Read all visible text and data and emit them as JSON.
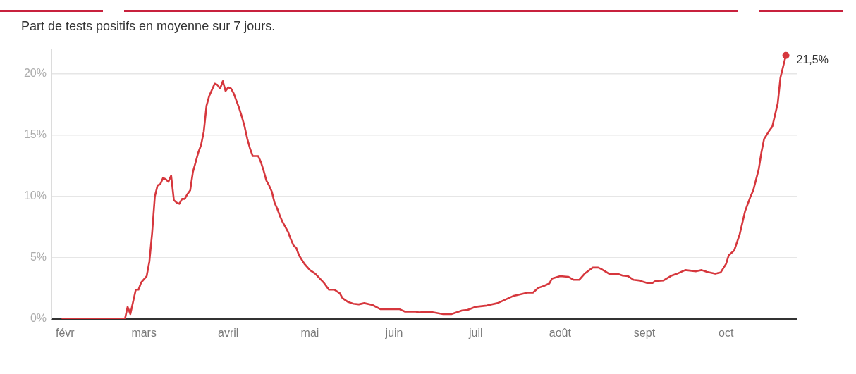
{
  "chart_data": {
    "type": "line",
    "title": "Part de tests positifs en moyenne sur 7 jours.",
    "color": "#d6373d",
    "x": [
      "--01-31",
      "--02-23",
      "--02-24",
      "--02-25",
      "--02-27",
      "--02-28",
      "--02-29",
      "--03-02",
      "--03-03",
      "--03-04",
      "--03-05",
      "--03-06",
      "--03-07",
      "--03-08",
      "--03-09",
      "--03-10",
      "--03-11",
      "--03-12",
      "--03-13",
      "--03-14",
      "--03-15",
      "--03-16",
      "--03-17",
      "--03-18",
      "--03-19",
      "--03-21",
      "--03-22",
      "--03-23",
      "--03-24",
      "--03-25",
      "--03-26",
      "--03-27",
      "--03-28",
      "--03-29",
      "--03-30",
      "--03-31",
      "--04-01",
      "--04-02",
      "--04-03",
      "--04-04",
      "--04-05",
      "--04-06",
      "--04-07",
      "--04-08",
      "--04-09",
      "--04-10",
      "--04-12",
      "--04-13",
      "--04-14",
      "--04-15",
      "--04-16",
      "--04-17",
      "--04-18",
      "--04-19",
      "--04-20",
      "--04-21",
      "--04-23",
      "--04-24",
      "--04-25",
      "--04-26",
      "--04-27",
      "--04-29",
      "--05-01",
      "--05-03",
      "--05-06",
      "--05-08",
      "--05-10",
      "--05-12",
      "--05-13",
      "--05-15",
      "--05-17",
      "--05-19",
      "--05-21",
      "--05-24",
      "--05-27",
      "--05-30",
      "--06-03",
      "--06-05",
      "--06-09",
      "--06-10",
      "--06-14",
      "--06-19",
      "--06-22",
      "--06-26",
      "--06-28",
      "--07-01",
      "--07-05",
      "--07-09",
      "--07-12",
      "--07-15",
      "--07-17",
      "--07-20",
      "--07-22",
      "--07-24",
      "--07-26",
      "--07-28",
      "--07-29",
      "--08-01",
      "--08-04",
      "--08-06",
      "--08-08",
      "--08-10",
      "--08-13",
      "--08-15",
      "--08-16",
      "--08-19",
      "--08-22",
      "--08-24",
      "--08-26",
      "--08-28",
      "--08-30",
      "--09-02",
      "--09-04",
      "--09-05",
      "--09-08",
      "--09-11",
      "--09-13",
      "--09-16",
      "--09-20",
      "--09-22",
      "--09-24",
      "--09-27",
      "--09-29",
      "--10-01",
      "--10-02",
      "--10-04",
      "--10-06",
      "--10-08",
      "--10-10",
      "--10-11",
      "--10-13",
      "--10-14",
      "--10-15",
      "--10-17",
      "--10-18",
      "--10-20",
      "--10-21",
      "--10-23"
    ],
    "values": [
      0,
      0,
      1.0,
      0.4,
      2.4,
      2.4,
      3.0,
      3.5,
      4.7,
      7.0,
      10.0,
      10.9,
      11.0,
      11.5,
      11.4,
      11.2,
      11.7,
      9.7,
      9.5,
      9.4,
      9.8,
      9.8,
      10.2,
      10.5,
      12.0,
      13.6,
      14.2,
      15.3,
      17.4,
      18.2,
      18.7,
      19.2,
      19.1,
      18.8,
      19.4,
      18.6,
      18.9,
      18.8,
      18.4,
      17.8,
      17.2,
      16.5,
      15.7,
      14.7,
      13.9,
      13.3,
      13.3,
      12.8,
      12.1,
      11.3,
      10.9,
      10.4,
      9.5,
      9.0,
      8.4,
      7.9,
      7.1,
      6.5,
      6.0,
      5.8,
      5.2,
      4.5,
      4.0,
      3.7,
      3.0,
      2.4,
      2.4,
      2.1,
      1.7,
      1.4,
      1.25,
      1.2,
      1.3,
      1.15,
      0.8,
      0.8,
      0.8,
      0.6,
      0.6,
      0.55,
      0.6,
      0.4,
      0.4,
      0.7,
      0.75,
      1.0,
      1.1,
      1.3,
      1.6,
      1.9,
      2.0,
      2.15,
      2.15,
      2.55,
      2.7,
      2.9,
      3.3,
      3.5,
      3.45,
      3.2,
      3.2,
      3.7,
      4.2,
      4.2,
      4.1,
      3.7,
      3.7,
      3.55,
      3.5,
      3.2,
      3.15,
      2.95,
      2.95,
      3.1,
      3.15,
      3.55,
      3.7,
      4.0,
      3.9,
      4.0,
      3.85,
      3.7,
      3.8,
      4.5,
      5.2,
      5.6,
      6.9,
      8.8,
      10.0,
      10.5,
      12.2,
      13.6,
      14.7,
      15.4,
      15.7,
      17.6,
      19.7,
      21.5
    ],
    "xlim": [
      "--01-27",
      "--10-27"
    ],
    "xticks": [
      {
        "value": "--02-01",
        "label": "févr"
      },
      {
        "value": "--03-01",
        "label": "mars"
      },
      {
        "value": "--04-01",
        "label": "avril"
      },
      {
        "value": "--05-01",
        "label": "mai"
      },
      {
        "value": "--06-01",
        "label": "juin"
      },
      {
        "value": "--07-01",
        "label": "juil"
      },
      {
        "value": "--08-01",
        "label": "août"
      },
      {
        "value": "--09-01",
        "label": "sept"
      },
      {
        "value": "--10-01",
        "label": "oct"
      }
    ],
    "ylim": [
      0,
      22
    ],
    "yticks": [
      {
        "value": 0,
        "label": "0%"
      },
      {
        "value": 5,
        "label": "5%"
      },
      {
        "value": 10,
        "label": "10%"
      },
      {
        "value": 15,
        "label": "15%"
      },
      {
        "value": 20,
        "label": "20%"
      }
    ],
    "grid": "y",
    "annotations": [
      {
        "text": "21,5%",
        "x": "--10-23",
        "y": 21.5
      }
    ]
  }
}
